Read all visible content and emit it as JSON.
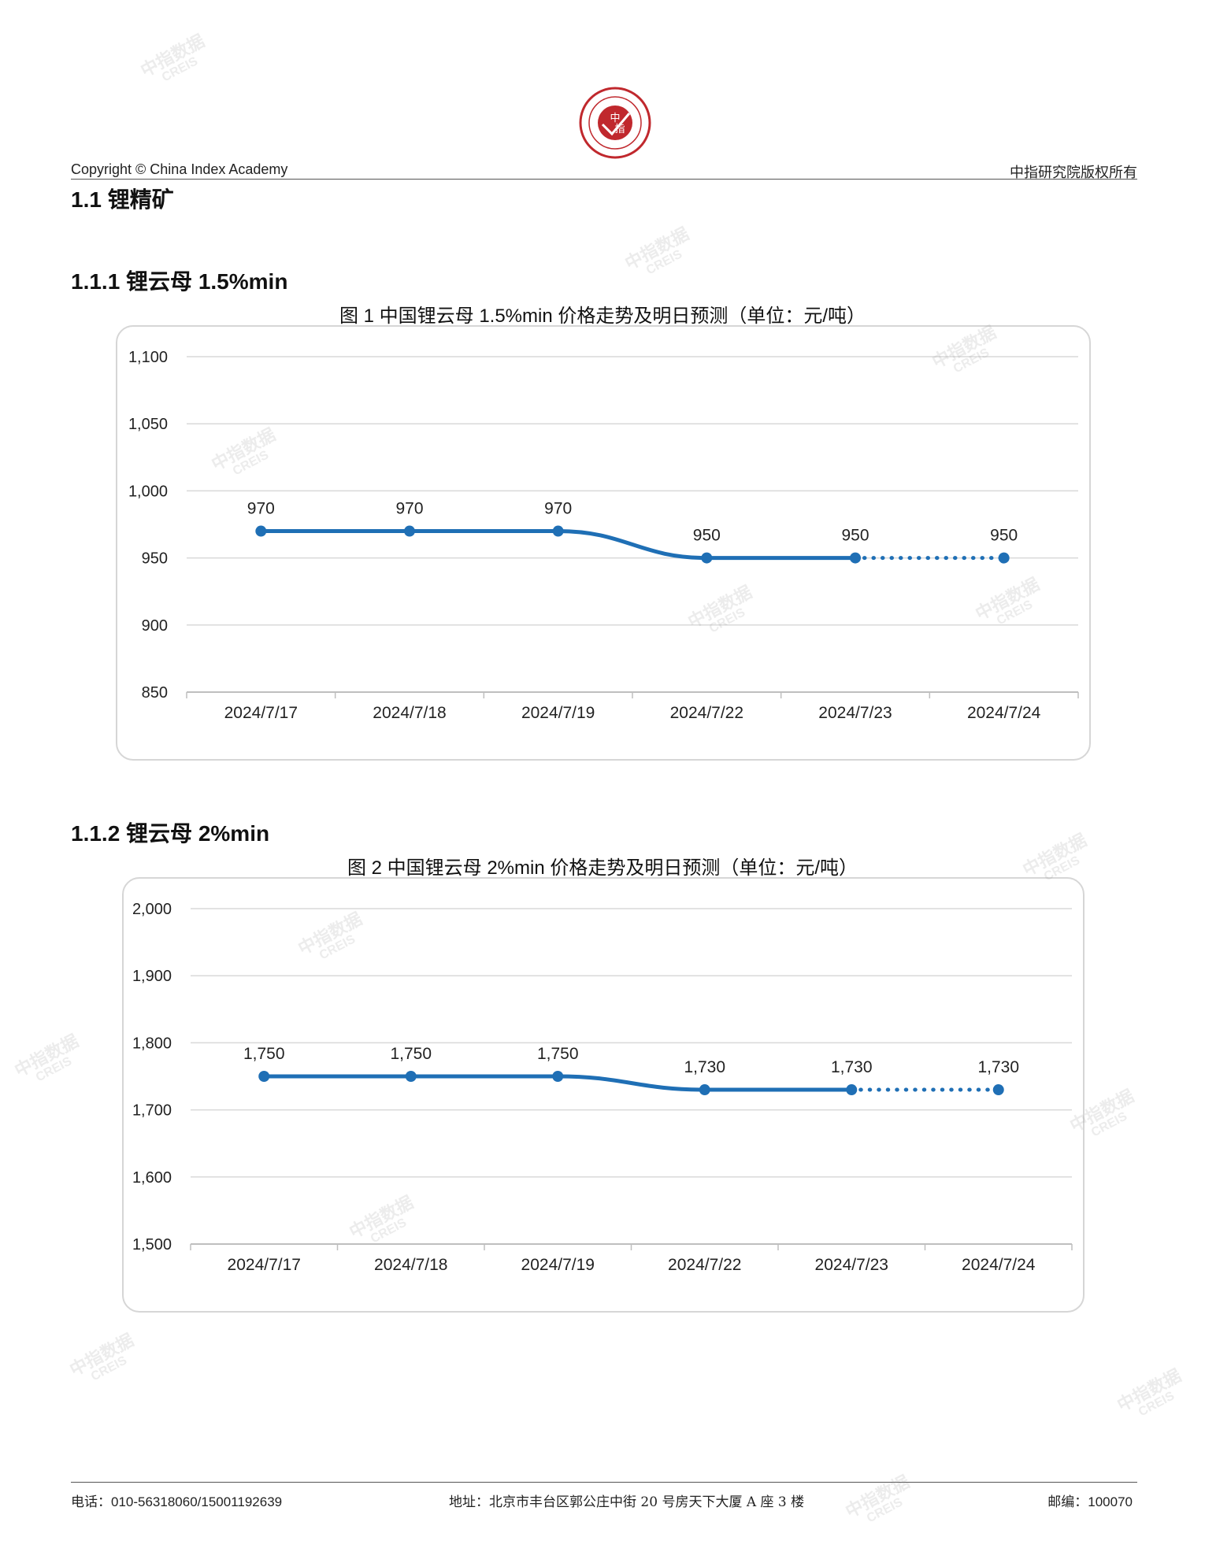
{
  "header": {
    "logo_text": "CHINA INDEX ACADEMY 中指 研究院",
    "copyright": "Copyright © China Index Academy",
    "rights": "中指研究院版权所有"
  },
  "section": {
    "title": "1.1 锂精矿"
  },
  "sub1": {
    "title": "1.1.1 锂云母 1.5%min"
  },
  "sub2": {
    "title": "1.1.2 锂云母 2%min"
  },
  "footer": {
    "phone": "电话：010-56318060/15001192639",
    "address": "地址：北京市丰台区郭公庄中街 20 号房天下大厦 A 座 3 楼",
    "postcode": "邮编：100070"
  },
  "watermark": {
    "cn": "中指数据",
    "en": "CREIS"
  },
  "colors": {
    "line": "#1f6fb5",
    "grid": "#d9d9d9",
    "axis": "#bfbfbf"
  },
  "chart_data": [
    {
      "type": "line",
      "title": "图 1 中国锂云母 1.5%min 价格走势及明日预测（单位：元/吨）",
      "categories": [
        "2024/7/17",
        "2024/7/18",
        "2024/7/19",
        "2024/7/22",
        "2024/7/23",
        "2024/7/24"
      ],
      "series": [
        {
          "values": [
            970,
            970,
            970,
            950,
            950,
            950
          ],
          "forecast_from_index": 4,
          "labels": [
            "970",
            "970",
            "970",
            "950",
            "950",
            "950"
          ]
        }
      ],
      "yticks": [
        "850",
        "900",
        "950",
        "1,000",
        "1,050",
        "1,100"
      ],
      "ylim": [
        850,
        1100
      ],
      "grid": true
    },
    {
      "type": "line",
      "title": "图 2 中国锂云母 2%min 价格走势及明日预测（单位：元/吨）",
      "categories": [
        "2024/7/17",
        "2024/7/18",
        "2024/7/19",
        "2024/7/22",
        "2024/7/23",
        "2024/7/24"
      ],
      "series": [
        {
          "values": [
            1750,
            1750,
            1750,
            1730,
            1730,
            1730
          ],
          "forecast_from_index": 4,
          "labels": [
            "1,750",
            "1,750",
            "1,750",
            "1,730",
            "1,730",
            "1,730"
          ]
        }
      ],
      "yticks": [
        "1,500",
        "1,600",
        "1,700",
        "1,800",
        "1,900",
        "2,000"
      ],
      "ylim": [
        1500,
        2000
      ],
      "grid": true
    }
  ]
}
